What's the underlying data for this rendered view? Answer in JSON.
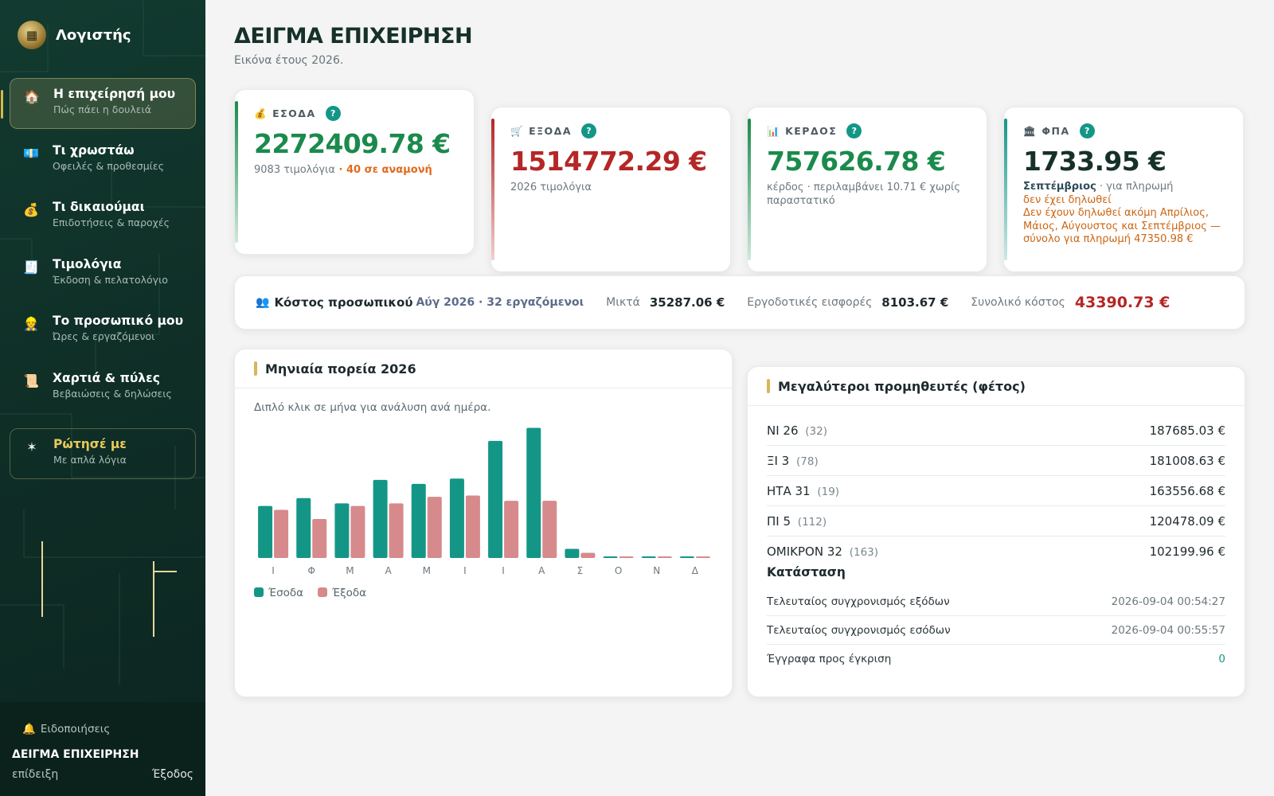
{
  "app": {
    "name": "Λογιστής"
  },
  "sidebar": {
    "items": [
      {
        "title": "Η επιχείρησή μου",
        "sub": "Πώς πάει η δουλειά",
        "icon": "🏠"
      },
      {
        "title": "Τι χρωστάω",
        "sub": "Οφειλές & προθεσμίες",
        "icon": "💶"
      },
      {
        "title": "Τι δικαιούμαι",
        "sub": "Επιδοτήσεις & παροχές",
        "icon": "💰"
      },
      {
        "title": "Τιμολόγια",
        "sub": "Έκδοση & πελατολόγιο",
        "icon": "🧾"
      },
      {
        "title": "Το προσωπικό μου",
        "sub": "Ώρες & εργαζόμενοι",
        "icon": "👷"
      },
      {
        "title": "Χαρτιά & πύλες",
        "sub": "Βεβαιώσεις & δηλώσεις",
        "icon": "📜"
      }
    ],
    "ask": {
      "title": "Ρώτησέ με",
      "sub": "Με απλά λόγια",
      "icon": "✶"
    },
    "footer": {
      "notifications": "Ειδοποιήσεις",
      "notifications_icon": "🔔",
      "business": "ΔΕΙΓΜΑ ΕΠΙΧΕΙΡΗΣΗ",
      "mode": "επίδειξη",
      "logout": "Έξοδος"
    }
  },
  "header": {
    "title": "ΔΕΙΓΜΑ ΕΠΙΧΕΙΡΗΣΗ",
    "subtitle": "Εικόνα έτους 2026."
  },
  "kpis": {
    "income": {
      "icon": "💰",
      "label": "ΕΣΟΔΑ",
      "value": "2272409.78 €",
      "note": "9083 τιμολόγια",
      "pending": " · 40 σε αναμονή",
      "color": "#1b8a4c"
    },
    "expenses": {
      "icon": "🛒",
      "label": "ΕΞΟΔΑ",
      "value": "1514772.29 €",
      "note": "2026 τιμολόγια",
      "color": "#b52626"
    },
    "profit": {
      "icon": "📊",
      "label": "ΚΕΡΔΟΣ",
      "value": "757626.78 €",
      "note": "κέρδος · περιλαμβάνει 10.71 € χωρίς παραστατικό",
      "color": "#1b8a4c"
    },
    "vat": {
      "icon": "🏛",
      "label": "ΦΠΑ",
      "value": "1733.95 €",
      "month": "Σεπτέμβριος",
      "month_note": " · για πληρωμή",
      "warn1": "δεν έχει δηλωθεί",
      "warn2": "Δεν έχουν δηλωθεί ακόμη Απρίλιος, Μάιος, Αύγουστος και Σεπτέμβριος — σύνολο για πληρωμή 47350.98 €",
      "color": "#16302a"
    },
    "help": "?"
  },
  "staff": {
    "icon": "👥",
    "title": "Κόστος προσωπικού",
    "meta": "Αύγ 2026 · 32 εργαζόμενοι",
    "gross_label": "Μικτά",
    "gross": "35287.06 €",
    "contrib_label": "Εργοδοτικές εισφορές",
    "contrib": "8103.67 €",
    "total_label": "Συνολικό κόστος",
    "total": "43390.73 €"
  },
  "chart": {
    "title": "Μηνιαία πορεία 2026",
    "hint": "Διπλό κλικ σε μήνα για ανάλυση ανά ημέρα."
  },
  "chart_data": {
    "type": "bar",
    "categories": [
      "Ι",
      "Φ",
      "Μ",
      "Α",
      "Μ",
      "Ι",
      "Ι",
      "Α",
      "Σ",
      "Ο",
      "Ν",
      "Δ"
    ],
    "series": [
      {
        "name": "Έσοδα",
        "color": "#149687",
        "values": [
          200000,
          230000,
          210000,
          300000,
          285000,
          305000,
          450000,
          500000,
          35000,
          5000,
          5000,
          5000
        ]
      },
      {
        "name": "Έξοδα",
        "color": "#d68a8c",
        "values": [
          185000,
          150000,
          200000,
          210000,
          235000,
          240000,
          220000,
          220000,
          20000,
          5000,
          5000,
          5000
        ]
      }
    ],
    "ylim": [
      0,
      520000
    ]
  },
  "suppliers": {
    "title": "Μεγαλύτεροι προμηθευτές (φέτος)",
    "rows": [
      {
        "name": "ΝΙ 26",
        "count": "(32)",
        "amount": "187685.03 €"
      },
      {
        "name": "ΞΙ 3",
        "count": "(78)",
        "amount": "181008.63 €"
      },
      {
        "name": "ΗΤΑ 31",
        "count": "(19)",
        "amount": "163556.68 €"
      },
      {
        "name": "ΠΙ 5",
        "count": "(112)",
        "amount": "120478.09 €"
      },
      {
        "name": "ΟΜΙΚΡΟΝ 32",
        "count": "(163)",
        "amount": "102199.96 €"
      }
    ]
  },
  "status": {
    "title": "Κατάσταση",
    "rows": [
      {
        "label": "Τελευταίος συγχρονισμός εξόδων",
        "value": "2026-09-04 00:54:27"
      },
      {
        "label": "Τελευταίος συγχρονισμός εσόδων",
        "value": "2026-09-04 00:55:57"
      },
      {
        "label": "Έγγραφα προς έγκριση",
        "value": "0"
      }
    ]
  }
}
